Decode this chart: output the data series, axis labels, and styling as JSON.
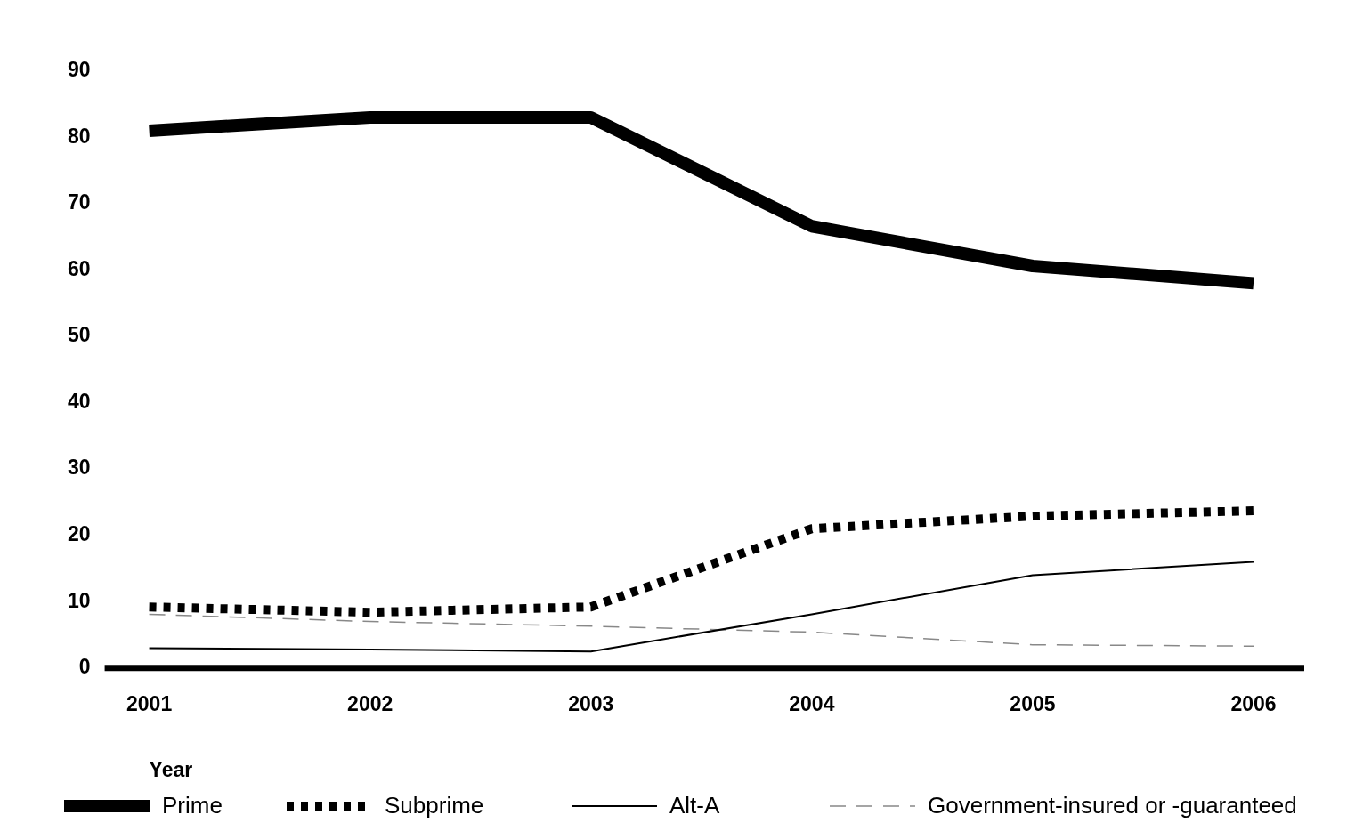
{
  "chart_data": {
    "type": "line",
    "xlabel": "Year",
    "categories": [
      "2001",
      "2002",
      "2003",
      "2004",
      "2005",
      "2006"
    ],
    "series": [
      {
        "name": "Prime",
        "color": "#000000",
        "line_style": "solid",
        "values": [
          81,
          83,
          83,
          66.6,
          60.6,
          58
        ]
      },
      {
        "name": "Subprime",
        "color": "#000000",
        "line_style": "dotted",
        "values": [
          9.2,
          8.4,
          9.2,
          21,
          22.9,
          23.7
        ]
      },
      {
        "name": "Alt-A",
        "color": "#000000",
        "line_style": "solid",
        "values": [
          3,
          2.8,
          2.5,
          8.1,
          14,
          16
        ]
      },
      {
        "name": "Government-insured or -guaranteed",
        "color": "#888888",
        "line_style": "dashed",
        "values": [
          8.1,
          7,
          6.3,
          5.4,
          3.5,
          3.3
        ]
      }
    ],
    "ylim": [
      0,
      90
    ],
    "yticks": [
      0,
      10,
      20,
      30,
      40,
      50,
      60,
      70,
      80,
      90
    ],
    "grid": false,
    "legend": "bottom",
    "marker": "none"
  }
}
